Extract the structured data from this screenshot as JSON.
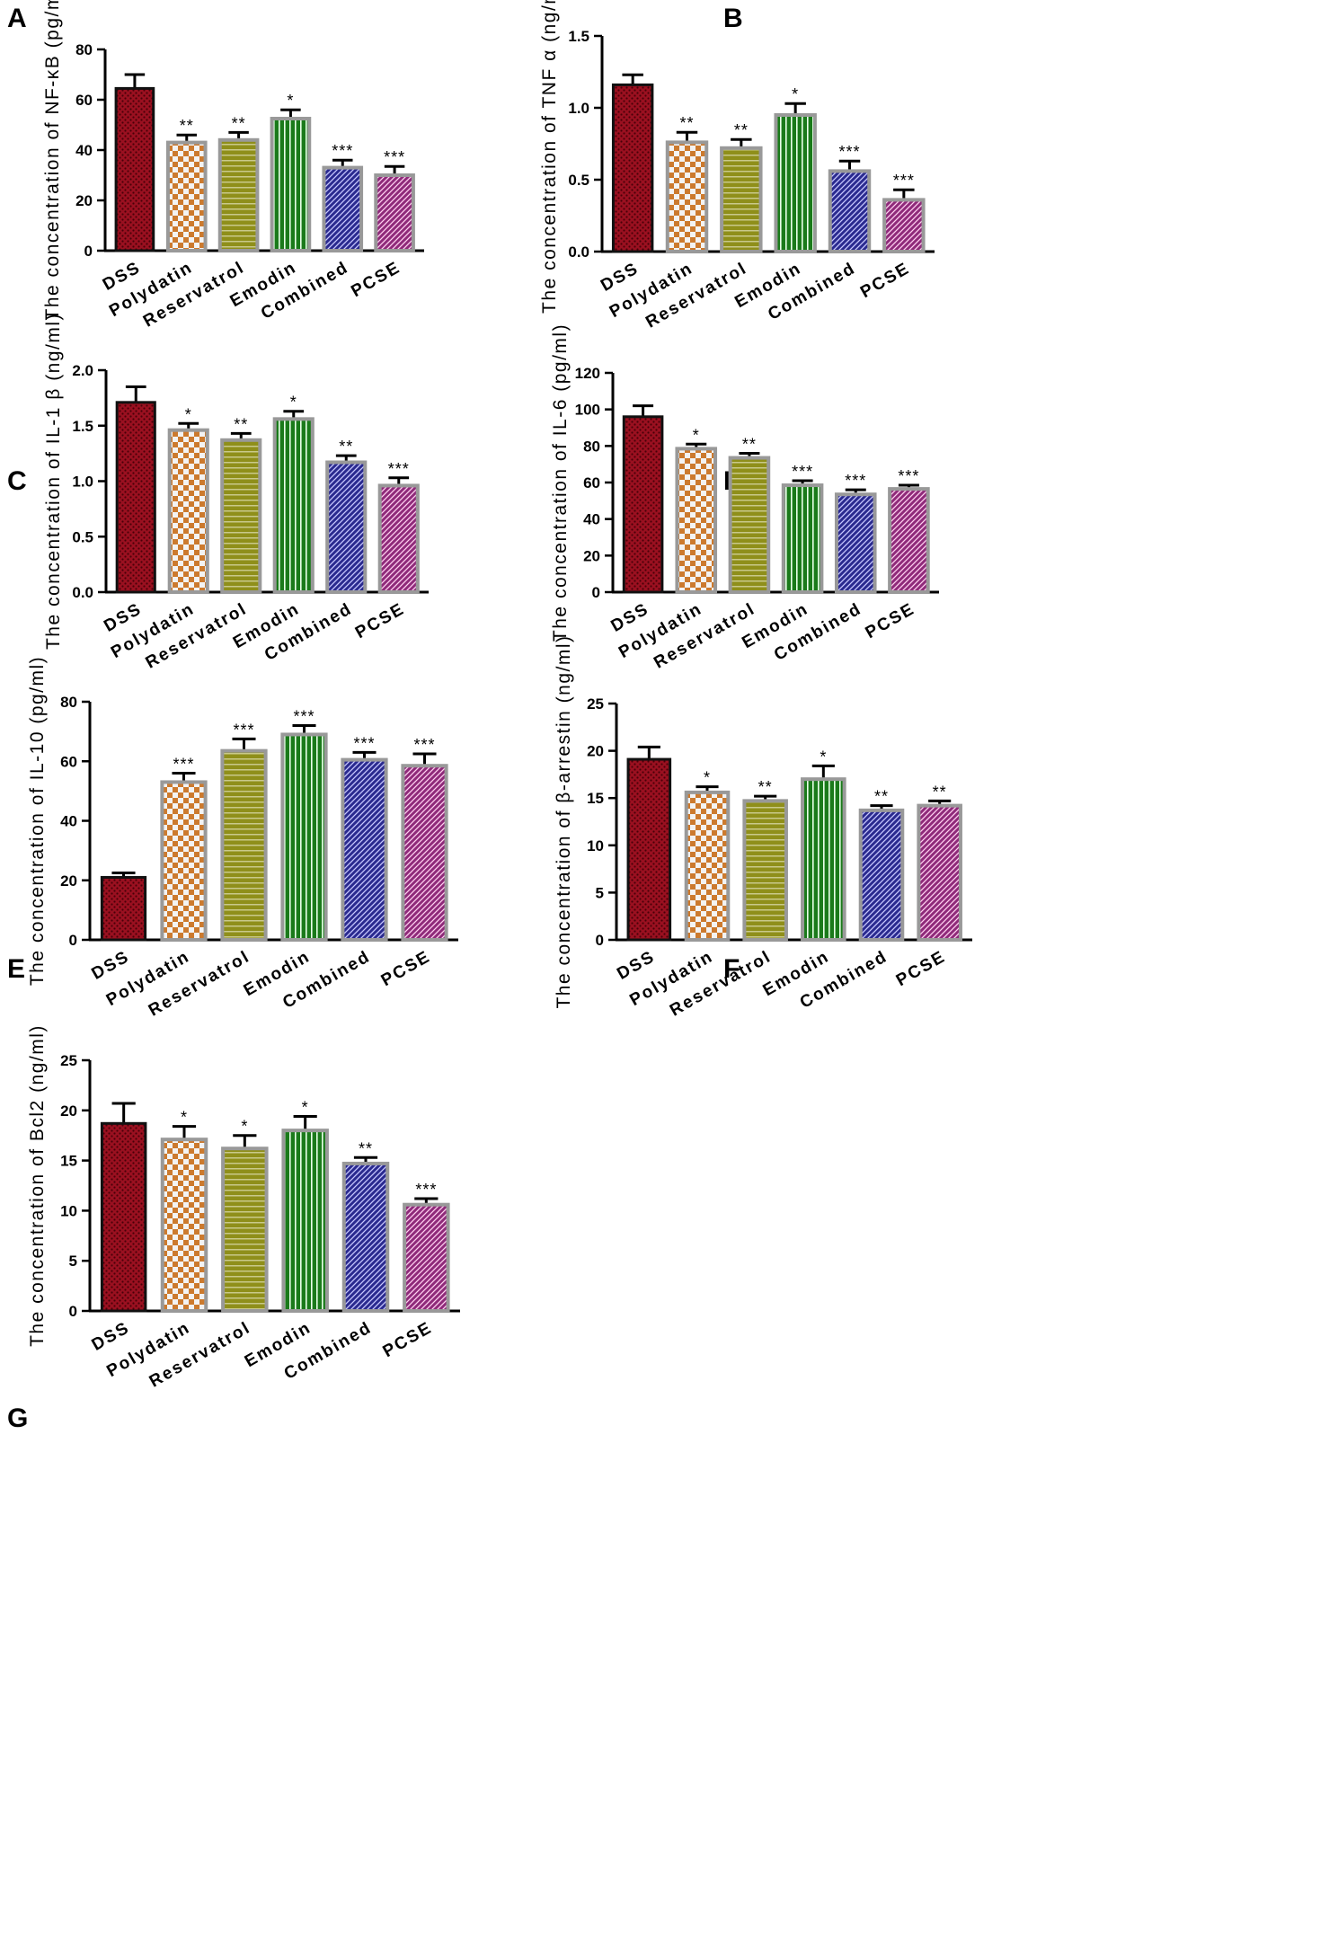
{
  "patterns": {
    "DSS": {
      "base": "#9a1020",
      "dark": "#4a0008",
      "kind": "dots"
    },
    "Polydatin": {
      "base": "#f3f3f3",
      "dark": "#cc7a2e",
      "kind": "checker"
    },
    "Reservatrol": {
      "base": "#8f8f1a",
      "dark": "#c9c98a",
      "kind": "hlines"
    },
    "Emodin": {
      "base": "#1a7a1a",
      "dark": "#e8ffe8",
      "kind": "vlines"
    },
    "Combined": {
      "base": "#2a2a8f",
      "dark": "#c8c8ff",
      "kind": "diag"
    },
    "PCSE": {
      "base": "#8f2a7a",
      "dark": "#ffd0f0",
      "kind": "diag"
    }
  },
  "chart_data": [
    {
      "panel": "A",
      "type": "bar",
      "ylabel": "The concentration of NF-κB (pg/ml)",
      "categories": [
        "DSS",
        "Polydatin",
        "Reservatrol",
        "Emodin",
        "Combined",
        "PCSE"
      ],
      "values": [
        64.5,
        43,
        44,
        52.5,
        33,
        30
      ],
      "errors": [
        5.5,
        3,
        3,
        3.5,
        3,
        3.5
      ],
      "significance": [
        "",
        "**",
        "**",
        "*",
        "***",
        "***"
      ],
      "ylim": [
        0,
        80
      ],
      "yticks": [
        "0",
        "20",
        "40",
        "60",
        "80"
      ],
      "ytick_values": [
        0,
        20,
        40,
        60,
        80
      ]
    },
    {
      "panel": "B",
      "type": "bar",
      "ylabel": "The concentration of TNF α (ng/ml)",
      "categories": [
        "DSS",
        "Polydatin",
        "Reservatrol",
        "Emodin",
        "Combined",
        "PCSE"
      ],
      "values": [
        1.16,
        0.76,
        0.72,
        0.95,
        0.56,
        0.36
      ],
      "errors": [
        0.07,
        0.07,
        0.06,
        0.08,
        0.07,
        0.07
      ],
      "significance": [
        "",
        "**",
        "**",
        "*",
        "***",
        "***"
      ],
      "ylim": [
        0,
        1.5
      ],
      "yticks": [
        "0.0",
        "0.5",
        "1.0",
        "1.5"
      ],
      "ytick_values": [
        0,
        0.5,
        1.0,
        1.5
      ]
    },
    {
      "panel": "C",
      "type": "bar",
      "ylabel": "The concentration of IL-1 β (ng/ml)",
      "categories": [
        "DSS",
        "Polydatin",
        "Reservatrol",
        "Emodin",
        "Combined",
        "PCSE"
      ],
      "values": [
        1.71,
        1.46,
        1.37,
        1.56,
        1.17,
        0.96
      ],
      "errors": [
        0.14,
        0.06,
        0.06,
        0.07,
        0.06,
        0.07
      ],
      "significance": [
        "",
        "*",
        "**",
        "*",
        "**",
        "***"
      ],
      "ylim": [
        0,
        2.0
      ],
      "yticks": [
        "0.0",
        "0.5",
        "1.0",
        "1.5",
        "2.0"
      ],
      "ytick_values": [
        0,
        0.5,
        1.0,
        1.5,
        2.0
      ]
    },
    {
      "panel": "D",
      "type": "bar",
      "ylabel": "The concentration of IL-6 (pg/ml)",
      "categories": [
        "DSS",
        "Polydatin",
        "Reservatrol",
        "Emodin",
        "Combined",
        "PCSE"
      ],
      "values": [
        96,
        78.5,
        73.5,
        58.5,
        53.5,
        56.5
      ],
      "errors": [
        6,
        2.5,
        2.5,
        2.5,
        2.5,
        2
      ],
      "significance": [
        "",
        "*",
        "**",
        "***",
        "***",
        "***"
      ],
      "ylim": [
        0,
        120
      ],
      "yticks": [
        "0",
        "20",
        "40",
        "60",
        "80",
        "100",
        "120"
      ],
      "ytick_values": [
        0,
        20,
        40,
        60,
        80,
        100,
        120
      ]
    },
    {
      "panel": "E",
      "type": "bar",
      "ylabel": "The concentration of IL-10 (pg/ml)",
      "categories": [
        "DSS",
        "Polydatin",
        "Reservatrol",
        "Emodin",
        "Combined",
        "PCSE"
      ],
      "values": [
        21,
        53,
        63.5,
        69,
        60.5,
        58.5
      ],
      "errors": [
        1.5,
        3,
        4,
        3,
        2.5,
        4
      ],
      "significance": [
        "",
        "***",
        "***",
        "***",
        "***",
        "***"
      ],
      "ylim": [
        0,
        80
      ],
      "yticks": [
        "0",
        "20",
        "40",
        "60",
        "80"
      ],
      "ytick_values": [
        0,
        20,
        40,
        60,
        80
      ]
    },
    {
      "panel": "F",
      "type": "bar",
      "ylabel": "The concentration of β-arrestin (ng/ml)",
      "categories": [
        "DSS",
        "Polydatin",
        "Reservatrol",
        "Emodin",
        "Combined",
        "PCSE"
      ],
      "values": [
        19.1,
        15.6,
        14.7,
        17,
        13.7,
        14.2
      ],
      "errors": [
        1.3,
        0.6,
        0.5,
        1.4,
        0.5,
        0.5
      ],
      "significance": [
        "",
        "*",
        "**",
        "*",
        "**",
        "**"
      ],
      "ylim": [
        0,
        25
      ],
      "yticks": [
        "0",
        "5",
        "10",
        "15",
        "20",
        "25"
      ],
      "ytick_values": [
        0,
        5,
        10,
        15,
        20,
        25
      ]
    },
    {
      "panel": "G",
      "type": "bar",
      "ylabel": "The concentration of Bcl2 (ng/ml)",
      "categories": [
        "DSS",
        "Polydatin",
        "Reservatrol",
        "Emodin",
        "Combined",
        "PCSE"
      ],
      "values": [
        18.7,
        17.1,
        16.2,
        18,
        14.7,
        10.6
      ],
      "errors": [
        2,
        1.3,
        1.3,
        1.4,
        0.6,
        0.6
      ],
      "significance": [
        "",
        "*",
        "*",
        "*",
        "**",
        "***"
      ],
      "ylim": [
        0,
        25
      ],
      "yticks": [
        "0",
        "5",
        "10",
        "15",
        "20",
        "25"
      ],
      "ytick_values": [
        0,
        5,
        10,
        15,
        20,
        25
      ]
    }
  ]
}
